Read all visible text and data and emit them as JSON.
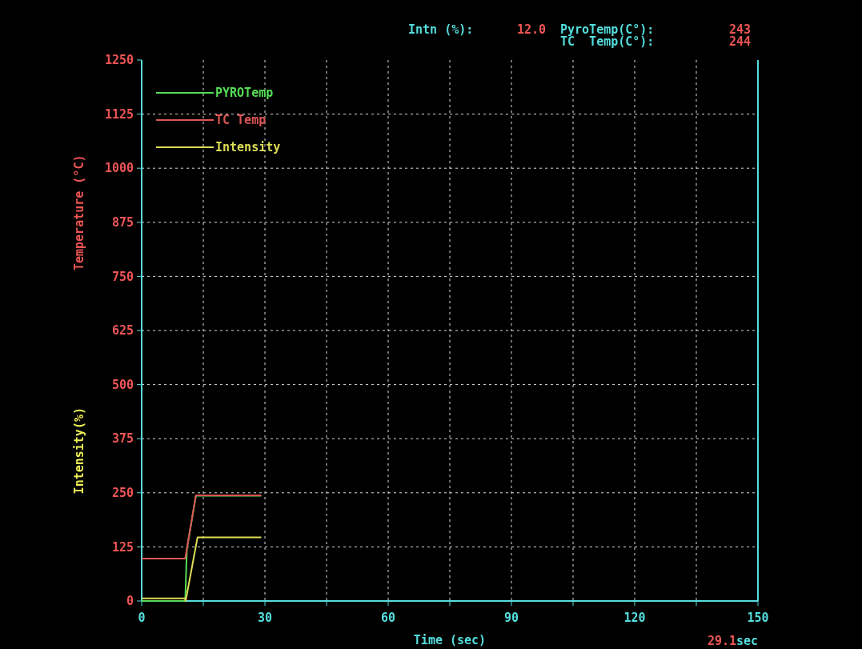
{
  "chart_data": {
    "type": "line",
    "xlabel": "Time (sec)",
    "ylabel": "Temperature (°C)",
    "y2label": "Intensity(%)",
    "xlim": [
      0,
      150
    ],
    "xticks": [
      0,
      {
        "value": 15,
        "label": null
      },
      30,
      {
        "value": 45,
        "label": null
      },
      60,
      {
        "value": 75,
        "label": null
      },
      90,
      {
        "value": 105,
        "label": null
      },
      120,
      {
        "value": 135,
        "label": null
      },
      150
    ],
    "ylim": [
      0,
      1250
    ],
    "yticks": [
      0,
      125,
      250,
      375,
      500,
      625,
      750,
      875,
      1000,
      1125,
      1250
    ],
    "grid": true,
    "legend": "top left",
    "line_style": "solid",
    "series": [
      {
        "name": "PYROTemp",
        "color": "#55dd55",
        "x": [
          0,
          10.6,
          11,
          13.2,
          29.1
        ],
        "values": [
          0,
          0,
          120,
          243,
          243
        ]
      },
      {
        "name": "TC   Temp",
        "color": "#dd5555",
        "x": [
          0,
          10.6,
          13.2,
          29.1
        ],
        "values": [
          98,
          98,
          244,
          244
        ]
      },
      {
        "name": "Intensity",
        "color": "#dddd55",
        "x": [
          0,
          10.6,
          10.7,
          13.6,
          29.1
        ],
        "values": [
          6,
          6,
          0,
          147,
          147
        ]
      }
    ],
    "annotations": [
      "Intn (%):",
      "12.0",
      "PyroTemp(C°):",
      "243",
      "TC  Temp(C°):",
      "244",
      "29.1",
      "sec"
    ]
  }
}
